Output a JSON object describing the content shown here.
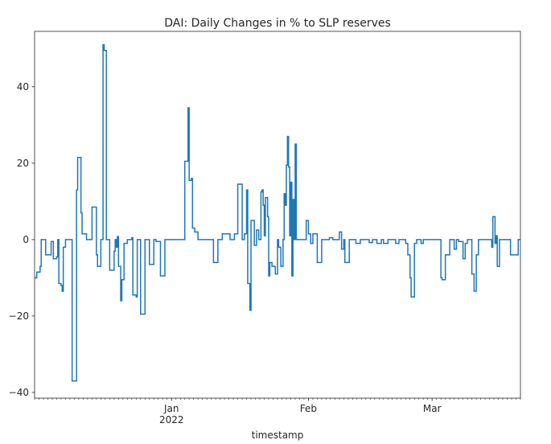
{
  "chart_data": {
    "type": "line",
    "title": "DAI: Daily Changes in % to SLP reserves",
    "xlabel": "timestamp",
    "ylabel": "",
    "ylim": [
      -41.5,
      54.5
    ],
    "yticks": [
      -40,
      -20,
      0,
      20,
      40
    ],
    "xlim": [
      "2021-12-01",
      "2022-03-21"
    ],
    "xticks": [
      {
        "date": "2022-01-01",
        "label": "Jan",
        "sublabel": "2022"
      },
      {
        "date": "2022-02-01",
        "label": "Feb",
        "sublabel": ""
      },
      {
        "date": "2022-03-01",
        "label": "Mar",
        "sublabel": ""
      }
    ],
    "grid": false,
    "legend": "none",
    "step": true,
    "series": [
      {
        "color": "#1f77b4",
        "points": [
          [
            "2021-12-01 00:00",
            -10
          ],
          [
            "2021-12-01 12:00",
            -8.5
          ],
          [
            "2021-12-02 06:00",
            -7
          ],
          [
            "2021-12-02 12:00",
            0
          ],
          [
            "2021-12-03 12:00",
            -4
          ],
          [
            "2021-12-04 18:00",
            -0.5
          ],
          [
            "2021-12-05 06:00",
            -5
          ],
          [
            "2021-12-06 00:00",
            -4.5
          ],
          [
            "2021-12-06 06:00",
            0
          ],
          [
            "2021-12-06 12:00",
            -11.5
          ],
          [
            "2021-12-07 00:00",
            -12
          ],
          [
            "2021-12-07 06:00",
            -13.5
          ],
          [
            "2021-12-07 12:00",
            -2
          ],
          [
            "2021-12-08 00:00",
            0
          ],
          [
            "2021-12-09 12:00",
            -37
          ],
          [
            "2021-12-10 12:00",
            13
          ],
          [
            "2021-12-10 18:00",
            21.5
          ],
          [
            "2021-12-11 12:00",
            7
          ],
          [
            "2021-12-11 18:00",
            1.5
          ],
          [
            "2021-12-12 18:00",
            0
          ],
          [
            "2021-12-14 00:00",
            8.5
          ],
          [
            "2021-12-15 00:00",
            -4
          ],
          [
            "2021-12-15 06:00",
            -7
          ],
          [
            "2021-12-16 00:00",
            0
          ],
          [
            "2021-12-16 12:00",
            51
          ],
          [
            "2021-12-16 18:00",
            49.5
          ],
          [
            "2021-12-17 06:00",
            0
          ],
          [
            "2021-12-18 00:00",
            -8
          ],
          [
            "2021-12-19 00:00",
            -3
          ],
          [
            "2021-12-19 06:00",
            0
          ],
          [
            "2021-12-19 12:00",
            -2
          ],
          [
            "2021-12-19 18:00",
            0.8
          ],
          [
            "2021-12-20 00:00",
            -7
          ],
          [
            "2021-12-20 12:00",
            -16
          ],
          [
            "2021-12-20 18:00",
            -10.5
          ],
          [
            "2021-12-21 06:00",
            -1
          ],
          [
            "2021-12-22 00:00",
            0
          ],
          [
            "2021-12-23 00:00",
            0.5
          ],
          [
            "2021-12-23 06:00",
            -14.5
          ],
          [
            "2021-12-24 00:00",
            -15
          ],
          [
            "2021-12-24 06:00",
            0
          ],
          [
            "2021-12-25 00:00",
            -19.5
          ],
          [
            "2021-12-26 00:00",
            0
          ],
          [
            "2021-12-27 00:00",
            -6.5
          ],
          [
            "2021-12-28 00:00",
            0
          ],
          [
            "2021-12-28 12:00",
            -0.5
          ],
          [
            "2021-12-29 12:00",
            -9.5
          ],
          [
            "2021-12-30 12:00",
            0
          ],
          [
            "2022-01-04 00:00",
            20.5
          ],
          [
            "2022-01-04 18:00",
            34.5
          ],
          [
            "2022-01-05 00:00",
            15.5
          ],
          [
            "2022-01-05 12:00",
            16
          ],
          [
            "2022-01-05 18:00",
            3
          ],
          [
            "2022-01-06 06:00",
            2
          ],
          [
            "2022-01-07 00:00",
            0
          ],
          [
            "2022-01-10 12:00",
            -6
          ],
          [
            "2022-01-11 12:00",
            0
          ],
          [
            "2022-01-12 12:00",
            1.5
          ],
          [
            "2022-01-14 06:00",
            0
          ],
          [
            "2022-01-15 06:00",
            1.5
          ],
          [
            "2022-01-16 00:00",
            14.5
          ],
          [
            "2022-01-17 00:00",
            0
          ],
          [
            "2022-01-17 12:00",
            1.5
          ],
          [
            "2022-01-18 00:00",
            13
          ],
          [
            "2022-01-18 06:00",
            -11.5
          ],
          [
            "2022-01-18 18:00",
            -18.5
          ],
          [
            "2022-01-19 00:00",
            5
          ],
          [
            "2022-01-19 18:00",
            -1.5
          ],
          [
            "2022-01-20 06:00",
            2.5
          ],
          [
            "2022-01-20 18:00",
            0
          ],
          [
            "2022-01-21 06:00",
            12.5
          ],
          [
            "2022-01-21 12:00",
            13
          ],
          [
            "2022-01-21 18:00",
            9
          ],
          [
            "2022-01-22 00:00",
            1
          ],
          [
            "2022-01-22 06:00",
            11
          ],
          [
            "2022-01-22 18:00",
            6
          ],
          [
            "2022-01-23 00:00",
            -9.5
          ],
          [
            "2022-01-23 06:00",
            -6
          ],
          [
            "2022-01-23 18:00",
            -7
          ],
          [
            "2022-01-24 12:00",
            -9
          ],
          [
            "2022-01-25 00:00",
            0
          ],
          [
            "2022-01-25 06:00",
            -2
          ],
          [
            "2022-01-25 18:00",
            -7
          ],
          [
            "2022-01-26 06:00",
            0
          ],
          [
            "2022-01-26 12:00",
            12
          ],
          [
            "2022-01-26 18:00",
            9
          ],
          [
            "2022-01-27 00:00",
            19.5
          ],
          [
            "2022-01-27 06:00",
            27
          ],
          [
            "2022-01-27 12:00",
            19
          ],
          [
            "2022-01-27 18:00",
            1
          ],
          [
            "2022-01-28 00:00",
            15
          ],
          [
            "2022-01-28 06:00",
            -9.5
          ],
          [
            "2022-01-28 12:00",
            10.5
          ],
          [
            "2022-01-28 18:00",
            0
          ],
          [
            "2022-01-29 00:00",
            25
          ],
          [
            "2022-01-29 06:00",
            0
          ],
          [
            "2022-01-31 12:00",
            5
          ],
          [
            "2022-02-01 00:00",
            1.5
          ],
          [
            "2022-02-01 12:00",
            -1
          ],
          [
            "2022-02-02 00:00",
            1.5
          ],
          [
            "2022-02-03 00:00",
            -6
          ],
          [
            "2022-02-04 00:00",
            0
          ],
          [
            "2022-02-05 18:00",
            0.5
          ],
          [
            "2022-02-06 12:00",
            0
          ],
          [
            "2022-02-08 00:00",
            2
          ],
          [
            "2022-02-08 12:00",
            -2.5
          ],
          [
            "2022-02-09 00:00",
            0
          ],
          [
            "2022-02-09 06:00",
            -6
          ],
          [
            "2022-02-10 06:00",
            0
          ],
          [
            "2022-02-11 18:00",
            -1
          ],
          [
            "2022-02-12 18:00",
            0
          ],
          [
            "2022-02-14 18:00",
            -0.8
          ],
          [
            "2022-02-15 12:00",
            0
          ],
          [
            "2022-02-16 12:00",
            -1
          ],
          [
            "2022-02-17 12:00",
            0
          ],
          [
            "2022-02-18 00:00",
            -1
          ],
          [
            "2022-02-19 00:00",
            0
          ],
          [
            "2022-02-20 18:00",
            -1
          ],
          [
            "2022-02-21 12:00",
            0
          ],
          [
            "2022-02-23 00:00",
            -1
          ],
          [
            "2022-02-23 12:00",
            -4
          ],
          [
            "2022-02-24 00:00",
            -10
          ],
          [
            "2022-02-24 06:00",
            -15
          ],
          [
            "2022-02-25 00:00",
            -1
          ],
          [
            "2022-02-25 12:00",
            0
          ],
          [
            "2022-02-26 12:00",
            -1
          ],
          [
            "2022-02-27 00:00",
            0
          ],
          [
            "2022-03-03 00:00",
            -10
          ],
          [
            "2022-03-03 06:00",
            -10.5
          ],
          [
            "2022-03-04 00:00",
            -4
          ],
          [
            "2022-03-05 00:00",
            0
          ],
          [
            "2022-03-06 00:00",
            -2.5
          ],
          [
            "2022-03-06 12:00",
            0
          ],
          [
            "2022-03-07 00:00",
            -0.5
          ],
          [
            "2022-03-08 00:00",
            -5
          ],
          [
            "2022-03-08 12:00",
            -1
          ],
          [
            "2022-03-09 00:00",
            0
          ],
          [
            "2022-03-10 00:00",
            -9
          ],
          [
            "2022-03-10 12:00",
            -13.5
          ],
          [
            "2022-03-11 00:00",
            -4
          ],
          [
            "2022-03-11 12:00",
            0
          ],
          [
            "2022-03-14 12:00",
            -2
          ],
          [
            "2022-03-14 18:00",
            6
          ],
          [
            "2022-03-15 06:00",
            -1
          ],
          [
            "2022-03-15 12:00",
            1
          ],
          [
            "2022-03-15 18:00",
            -7
          ],
          [
            "2022-03-16 06:00",
            0
          ],
          [
            "2022-03-18 18:00",
            -4
          ],
          [
            "2022-03-20 12:00",
            0
          ],
          [
            "2022-03-21 00:00",
            0
          ]
        ]
      }
    ]
  }
}
